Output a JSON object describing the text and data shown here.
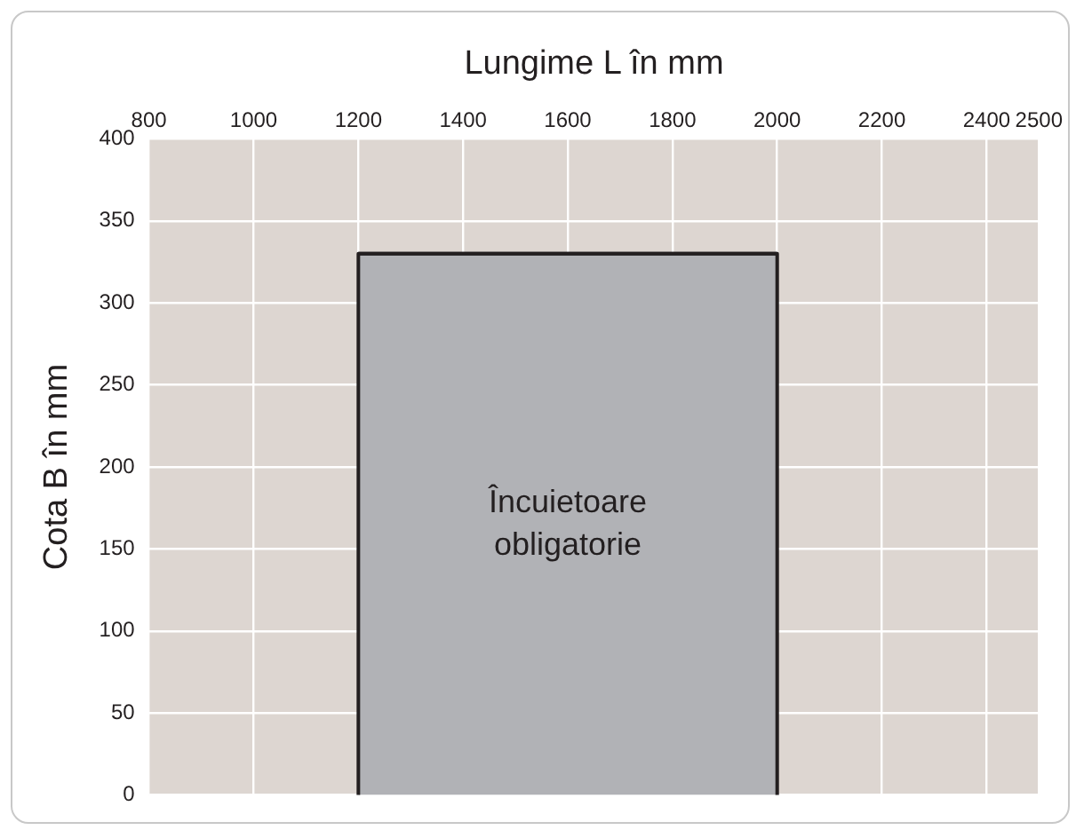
{
  "chart_data": {
    "type": "area",
    "xlabel": "Lungime L în mm",
    "ylabel": "Cota B în mm",
    "series": [
      {
        "x": [
          1200,
          2000
        ],
        "values": [
          330,
          330
        ],
        "color": "#b1b2b6"
      }
    ],
    "xlim": [
      800,
      2500
    ],
    "xticks": [
      800,
      1000,
      1200,
      1400,
      1600,
      1800,
      2000,
      2200,
      2400,
      2500
    ],
    "ylim": [
      0,
      400
    ],
    "yticks": [
      0,
      50,
      100,
      150,
      200,
      250,
      300,
      350,
      400
    ],
    "grid": true,
    "annotations": [
      "Încuietoare obligatorie"
    ]
  }
}
